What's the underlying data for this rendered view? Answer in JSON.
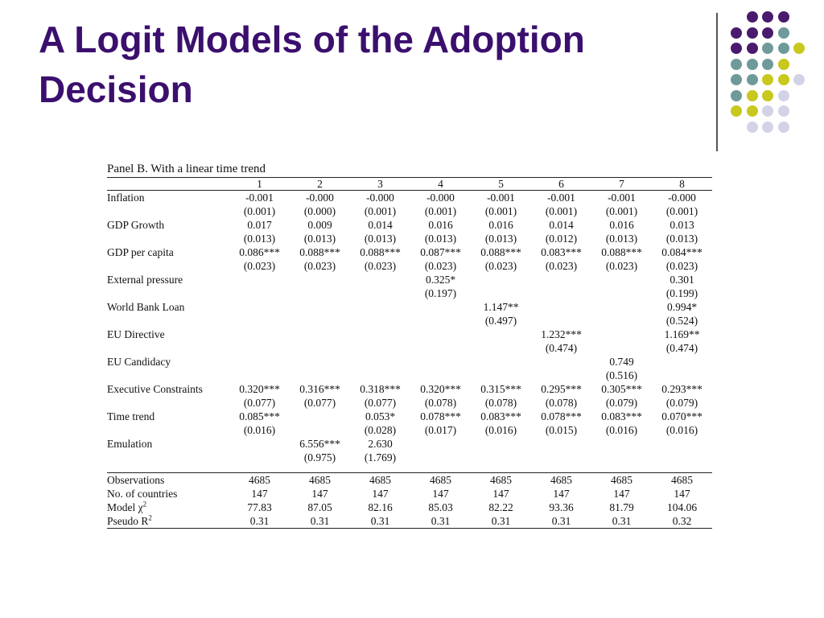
{
  "title_line1": "A Logit Models of the Adoption",
  "title_line2": "Decision",
  "decor_colors": {
    "purple": "#4a1a6e",
    "teal": "#6e9a9a",
    "yellow": "#c8c81e",
    "lavender": "#d3d3e8"
  },
  "panel_title": "Panel B. With a linear time trend",
  "columns": [
    "1",
    "2",
    "3",
    "4",
    "5",
    "6",
    "7",
    "8"
  ],
  "rows": [
    {
      "label": "Inflation",
      "est": [
        "-0.001",
        "-0.000",
        "-0.000",
        "-0.000",
        "-0.001",
        "-0.001",
        "-0.001",
        "-0.000"
      ],
      "se": [
        "(0.001)",
        "(0.000)",
        "(0.001)",
        "(0.001)",
        "(0.001)",
        "(0.001)",
        "(0.001)",
        "(0.001)"
      ]
    },
    {
      "label": "GDP Growth",
      "est": [
        "0.017",
        "0.009",
        "0.014",
        "0.016",
        "0.016",
        "0.014",
        "0.016",
        "0.013"
      ],
      "se": [
        "(0.013)",
        "(0.013)",
        "(0.013)",
        "(0.013)",
        "(0.013)",
        "(0.012)",
        "(0.013)",
        "(0.013)"
      ]
    },
    {
      "label": "GDP per capita",
      "est": [
        "0.086***",
        "0.088***",
        "0.088***",
        "0.087***",
        "0.088***",
        "0.083***",
        "0.088***",
        "0.084***"
      ],
      "se": [
        "(0.023)",
        "(0.023)",
        "(0.023)",
        "(0.023)",
        "(0.023)",
        "(0.023)",
        "(0.023)",
        "(0.023)"
      ]
    },
    {
      "label": "External pressure",
      "est": [
        "",
        "",
        "",
        "0.325*",
        "",
        "",
        "",
        "0.301"
      ],
      "se": [
        "",
        "",
        "",
        "(0.197)",
        "",
        "",
        "",
        "(0.199)"
      ]
    },
    {
      "label": "World Bank Loan",
      "est": [
        "",
        "",
        "",
        "",
        "1.147**",
        "",
        "",
        "0.994*"
      ],
      "se": [
        "",
        "",
        "",
        "",
        "(0.497)",
        "",
        "",
        "(0.524)"
      ]
    },
    {
      "label": "EU Directive",
      "est": [
        "",
        "",
        "",
        "",
        "",
        "1.232***",
        "",
        "1.169**"
      ],
      "se": [
        "",
        "",
        "",
        "",
        "",
        "(0.474)",
        "",
        "(0.474)"
      ]
    },
    {
      "label": "EU Candidacy",
      "est": [
        "",
        "",
        "",
        "",
        "",
        "",
        "0.749",
        ""
      ],
      "se": [
        "",
        "",
        "",
        "",
        "",
        "",
        "(0.516)",
        ""
      ]
    },
    {
      "label": "Executive Constraints",
      "est": [
        "0.320***",
        "0.316***",
        "0.318***",
        "0.320***",
        "0.315***",
        "0.295***",
        "0.305***",
        "0.293***"
      ],
      "se": [
        "(0.077)",
        "(0.077)",
        "(0.077)",
        "(0.078)",
        "(0.078)",
        "(0.078)",
        "(0.079)",
        "(0.079)"
      ]
    },
    {
      "label": "Time trend",
      "est": [
        "0.085***",
        "",
        "0.053*",
        "0.078***",
        "0.083***",
        "0.078***",
        "0.083***",
        "0.070***"
      ],
      "se": [
        "(0.016)",
        "",
        "(0.028)",
        "(0.017)",
        "(0.016)",
        "(0.015)",
        "(0.016)",
        "(0.016)"
      ]
    },
    {
      "label": "Emulation",
      "est": [
        "",
        "6.556***",
        "2.630",
        "",
        "",
        "",
        "",
        ""
      ],
      "se": [
        "",
        "(0.975)",
        "(1.769)",
        "",
        "",
        "",
        "",
        ""
      ]
    }
  ],
  "summary": [
    {
      "label": "Observations",
      "sup": "",
      "values": [
        "4685",
        "4685",
        "4685",
        "4685",
        "4685",
        "4685",
        "4685",
        "4685"
      ]
    },
    {
      "label": "No. of countries",
      "sup": "",
      "values": [
        "147",
        "147",
        "147",
        "147",
        "147",
        "147",
        "147",
        "147"
      ]
    },
    {
      "label": "Model χ",
      "sup": "2",
      "values": [
        "77.83",
        "87.05",
        "82.16",
        "85.03",
        "82.22",
        "93.36",
        "81.79",
        "104.06"
      ]
    },
    {
      "label": "Pseudo R",
      "sup": "2",
      "values": [
        "0.31",
        "0.31",
        "0.31",
        "0.31",
        "0.31",
        "0.31",
        "0.31",
        "0.32"
      ]
    }
  ]
}
